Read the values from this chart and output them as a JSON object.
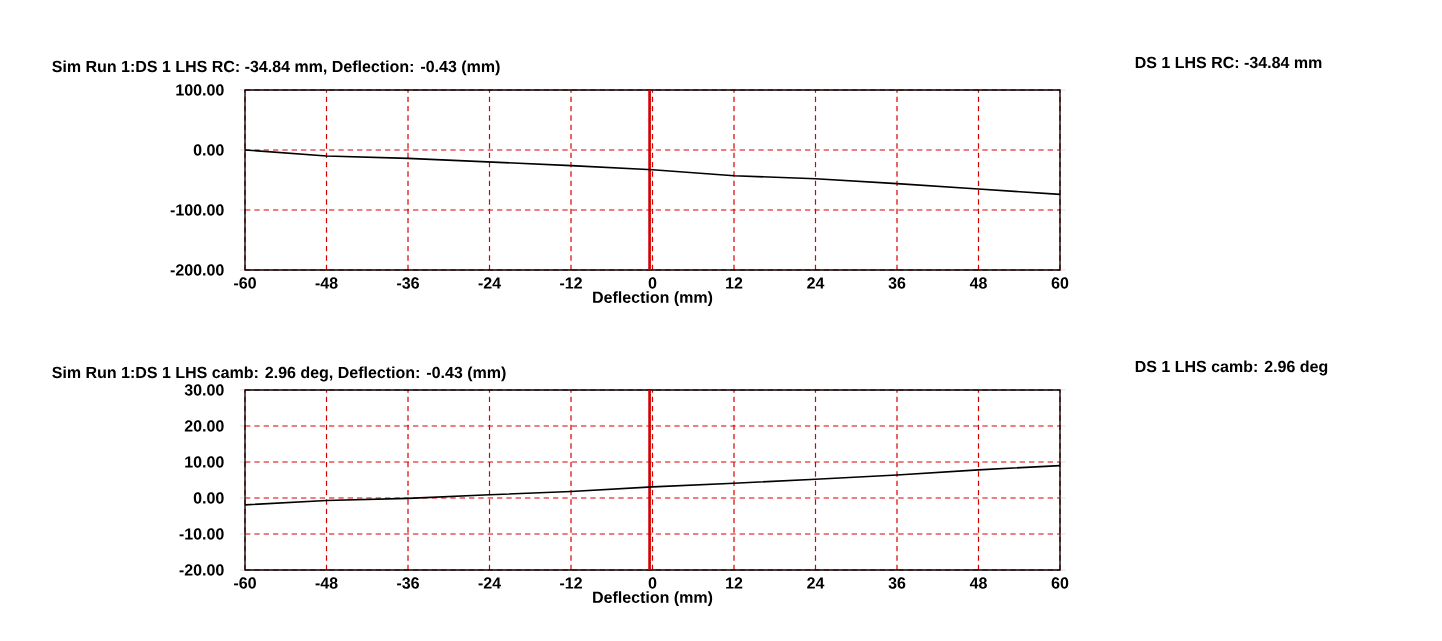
{
  "chart_data": [
    {
      "type": "line",
      "title": "Sim Run 1:DS 1 LHS RC: -34.84  mm, Deflection: -0.43 (mm)",
      "xlabel": "Deflection (mm)",
      "annotations": [
        "DS 1 LHS RC: -34.84  mm"
      ],
      "x": [
        -60,
        -48,
        -36,
        -24,
        -12,
        0,
        12,
        24,
        36,
        48,
        60
      ],
      "series": [
        {
          "color": "#000000",
          "values": [
            0,
            -10,
            -14,
            -20,
            -26,
            -33,
            -43,
            -48,
            -56,
            -65,
            -74
          ]
        }
      ],
      "xlim": [
        -60,
        60
      ],
      "xticks": [
        -60,
        -48,
        -36,
        -24,
        -12,
        0,
        12,
        24,
        36,
        48,
        60
      ],
      "ylim": [
        -200,
        100
      ],
      "yticks": [
        {
          "value": -200,
          "label": "-200.00"
        },
        {
          "value": -100,
          "label": "-100.00"
        },
        {
          "value": 0,
          "label": "0.00"
        },
        {
          "value": 100,
          "label": "100.00"
        }
      ],
      "grid": true,
      "ref_lines": [
        {
          "axis": "x",
          "value": -0.43,
          "color": "#d40000"
        }
      ]
    },
    {
      "type": "line",
      "title": "Sim Run 1:DS 1 LHS camb: 2.96  deg, Deflection: -0.43 (mm)",
      "xlabel": "Deflection (mm)",
      "annotations": [
        "DS 1 LHS camb: 2.96  deg"
      ],
      "x": [
        -60,
        -48,
        -36,
        -24,
        -12,
        0,
        12,
        24,
        36,
        48,
        60
      ],
      "series": [
        {
          "color": "#000000",
          "values": [
            -1.9,
            -0.7,
            -0.1,
            0.9,
            1.8,
            3.1,
            4.1,
            5.2,
            6.4,
            7.8,
            9.0
          ]
        }
      ],
      "xlim": [
        -60,
        60
      ],
      "xticks": [
        -60,
        -48,
        -36,
        -24,
        -12,
        0,
        12,
        24,
        36,
        48,
        60
      ],
      "ylim": [
        -20,
        30
      ],
      "yticks": [
        {
          "value": -20,
          "label": "-20.00"
        },
        {
          "value": -10,
          "label": "-10.00"
        },
        {
          "value": 0,
          "label": "0.00"
        },
        {
          "value": 10,
          "label": "10.00"
        },
        {
          "value": 20,
          "label": "20.00"
        },
        {
          "value": 30,
          "label": "30.00"
        }
      ],
      "grid": true,
      "ref_lines": [
        {
          "axis": "x",
          "value": -0.43,
          "color": "#d40000"
        }
      ]
    }
  ]
}
